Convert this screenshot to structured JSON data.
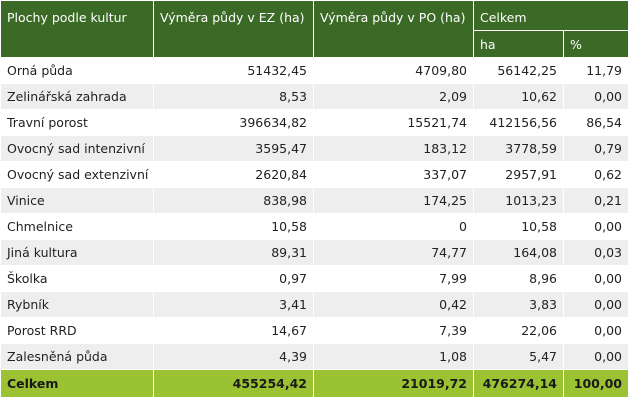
{
  "header": {
    "col1": "Plochy podle kultur",
    "col2": "Výměra půdy v EZ (ha)",
    "col3": "Výměra půdy v PO (ha)",
    "col4": "Celkem",
    "sub_ha": "ha",
    "sub_pct": "%"
  },
  "rows": [
    {
      "name": "Orná půda",
      "ez": "51432,45",
      "po": "4709,80",
      "ha": "56142,25",
      "pct": "11,79"
    },
    {
      "name": "Zelinářská zahrada",
      "ez": "8,53",
      "po": "2,09",
      "ha": "10,62",
      "pct": "0,00"
    },
    {
      "name": "Travní porost",
      "ez": "396634,82",
      "po": "15521,74",
      "ha": "412156,56",
      "pct": "86,54"
    },
    {
      "name": "Ovocný sad intenzivní",
      "ez": "3595,47",
      "po": "183,12",
      "ha": "3778,59",
      "pct": "0,79"
    },
    {
      "name": "Ovocný sad extenzivní",
      "ez": "2620,84",
      "po": "337,07",
      "ha": "2957,91",
      "pct": "0,62"
    },
    {
      "name": "Vinice",
      "ez": "838,98",
      "po": "174,25",
      "ha": "1013,23",
      "pct": "0,21"
    },
    {
      "name": "Chmelnice",
      "ez": "10,58",
      "po": "0",
      "ha": "10,58",
      "pct": "0,00"
    },
    {
      "name": "Jiná kultura",
      "ez": "89,31",
      "po": "74,77",
      "ha": "164,08",
      "pct": "0,03"
    },
    {
      "name": "Školka",
      "ez": "0,97",
      "po": "7,99",
      "ha": "8,96",
      "pct": "0,00"
    },
    {
      "name": "Rybník",
      "ez": "3,41",
      "po": "0,42",
      "ha": "3,83",
      "pct": "0,00"
    },
    {
      "name": "Porost RRD",
      "ez": "14,67",
      "po": "7,39",
      "ha": "22,06",
      "pct": "0,00"
    },
    {
      "name": "Zalesněná půda",
      "ez": "4,39",
      "po": "1,08",
      "ha": "5,47",
      "pct": "0,00"
    }
  ],
  "total": {
    "name": "Celkem",
    "ez": "455254,42",
    "po": "21019,72",
    "ha": "476274,14",
    "pct": "100,00"
  }
}
